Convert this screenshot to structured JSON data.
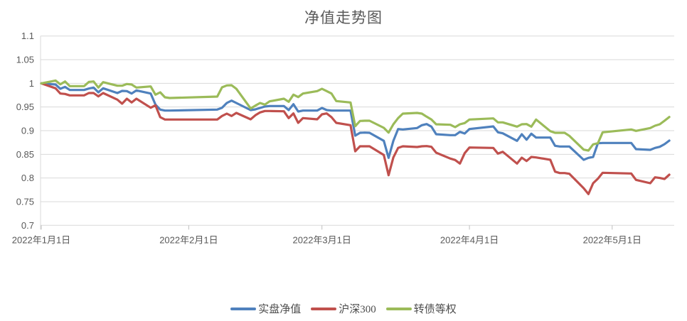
{
  "chart_data": {
    "type": "line",
    "title": "净值走势图",
    "grid": true,
    "legend_position": "bottom",
    "y_axis": {
      "min": 0.7,
      "max": 1.1,
      "tick_labels": [
        "1.1",
        "1.05",
        "1",
        "0.95",
        "0.9",
        "0.85",
        "0.8",
        "0.75",
        "0.7"
      ],
      "tick_values": [
        1.1,
        1.05,
        1.0,
        0.95,
        0.9,
        0.85,
        0.8,
        0.75,
        0.7
      ]
    },
    "x_axis": {
      "unit": "days-from-2022-01-01",
      "start_day": 0,
      "end_day": 133,
      "ticks": [
        {
          "day": 0,
          "label": "2022年1月1日"
        },
        {
          "day": 31,
          "label": "2022年2月1日"
        },
        {
          "day": 59,
          "label": "2022年3月1日"
        },
        {
          "day": 90,
          "label": "2022年4月1日"
        },
        {
          "day": 120,
          "label": "2022年5月1日"
        }
      ]
    },
    "days": [
      0,
      3,
      4,
      5,
      6,
      9,
      10,
      11,
      12,
      13,
      16,
      17,
      18,
      19,
      20,
      23,
      24,
      25,
      26,
      27,
      37,
      38,
      39,
      40,
      41,
      44,
      45,
      46,
      47,
      48,
      51,
      52,
      53,
      54,
      55,
      58,
      59,
      60,
      61,
      62,
      65,
      66,
      67,
      68,
      69,
      72,
      73,
      74,
      75,
      76,
      79,
      80,
      81,
      82,
      83,
      86,
      87,
      88,
      89,
      90,
      95,
      96,
      97,
      100,
      101,
      102,
      103,
      104,
      107,
      108,
      109,
      110,
      111,
      114,
      115,
      116,
      117,
      118,
      124,
      125,
      128,
      129,
      130,
      131,
      132
    ],
    "series": [
      {
        "name": "实盘净值",
        "color": "#4F81BD",
        "values": [
          1.0,
          0.9975,
          0.9885,
          0.9925,
          0.986,
          0.986,
          0.989,
          0.991,
          0.981,
          0.9895,
          0.9795,
          0.984,
          0.9835,
          0.9785,
          0.985,
          0.9785,
          0.955,
          0.9445,
          0.9425,
          0.9425,
          0.9445,
          0.9485,
          0.9585,
          0.9635,
          0.9585,
          0.9435,
          0.945,
          0.948,
          0.951,
          0.952,
          0.952,
          0.9435,
          0.956,
          0.9405,
          0.9425,
          0.9425,
          0.948,
          0.9435,
          0.9425,
          0.9425,
          0.9425,
          0.8895,
          0.8955,
          0.896,
          0.8955,
          0.8785,
          0.8425,
          0.8785,
          0.9035,
          0.9025,
          0.9055,
          0.9115,
          0.914,
          0.9085,
          0.8925,
          0.8905,
          0.8905,
          0.8975,
          0.894,
          0.9035,
          0.909,
          0.8965,
          0.8945,
          0.8785,
          0.8925,
          0.881,
          0.8935,
          0.8855,
          0.8855,
          0.868,
          0.8665,
          0.8665,
          0.8665,
          0.8385,
          0.8425,
          0.8445,
          0.8735,
          0.874,
          0.874,
          0.861,
          0.8595,
          0.8635,
          0.866,
          0.8715,
          0.879
        ]
      },
      {
        "name": "沪深300",
        "color": "#C0504D",
        "values": [
          1.0,
          0.9895,
          0.9785,
          0.9775,
          0.9745,
          0.9745,
          0.9795,
          0.9795,
          0.9725,
          0.9795,
          0.9655,
          0.957,
          0.9675,
          0.9595,
          0.9675,
          0.9485,
          0.9535,
          0.9285,
          0.9235,
          0.9235,
          0.9235,
          0.931,
          0.936,
          0.931,
          0.9375,
          0.924,
          0.9325,
          0.9385,
          0.9415,
          0.9415,
          0.941,
          0.9265,
          0.9365,
          0.9165,
          0.9265,
          0.924,
          0.9345,
          0.9365,
          0.9285,
          0.9165,
          0.9115,
          0.8565,
          0.867,
          0.867,
          0.867,
          0.8485,
          0.806,
          0.8435,
          0.8635,
          0.867,
          0.8655,
          0.867,
          0.8675,
          0.866,
          0.8535,
          0.841,
          0.838,
          0.8305,
          0.8525,
          0.8645,
          0.8635,
          0.8515,
          0.8555,
          0.8305,
          0.843,
          0.836,
          0.8445,
          0.8435,
          0.8385,
          0.8135,
          0.8105,
          0.8105,
          0.809,
          0.7785,
          0.766,
          0.789,
          0.7985,
          0.811,
          0.8095,
          0.796,
          0.789,
          0.8015,
          0.8,
          0.798,
          0.807
        ]
      },
      {
        "name": "转债等权",
        "color": "#9BBB59",
        "values": [
          1.0,
          1.006,
          0.998,
          1.004,
          0.994,
          0.994,
          1.003,
          1.004,
          0.991,
          1.0025,
          0.995,
          0.995,
          0.9985,
          0.9975,
          0.991,
          0.9935,
          0.976,
          0.981,
          0.9705,
          0.969,
          0.972,
          0.9915,
          0.9955,
          0.996,
          0.9885,
          0.947,
          0.953,
          0.9585,
          0.955,
          0.962,
          0.9675,
          0.961,
          0.976,
          0.971,
          0.9785,
          0.9835,
          0.9885,
          0.9835,
          0.9785,
          0.9625,
          0.9595,
          0.9095,
          0.9205,
          0.921,
          0.921,
          0.906,
          0.896,
          0.9135,
          0.9265,
          0.936,
          0.9375,
          0.936,
          0.9295,
          0.9235,
          0.9135,
          0.9125,
          0.9075,
          0.9135,
          0.916,
          0.9235,
          0.926,
          0.9175,
          0.9175,
          0.9085,
          0.9135,
          0.914,
          0.9085,
          0.9235,
          0.899,
          0.8955,
          0.8955,
          0.8955,
          0.889,
          0.86,
          0.858,
          0.871,
          0.8735,
          0.8965,
          0.9025,
          0.8995,
          0.9055,
          0.9105,
          0.9135,
          0.921,
          0.929
        ]
      }
    ],
    "colors": {
      "gridline": "#D9D9D9",
      "axis_tick": "#BFBFBF",
      "axis_text": "#595959"
    }
  }
}
